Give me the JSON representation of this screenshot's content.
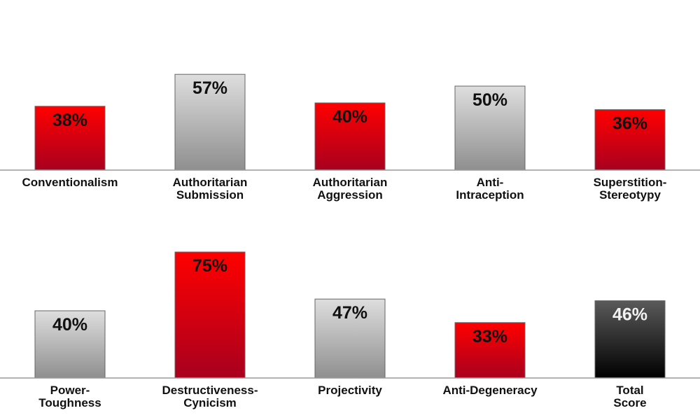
{
  "chart_data": [
    {
      "type": "bar",
      "categories": [
        "Conventionalism",
        "Authoritarian\nSubmission",
        "Authoritarian\nAggression",
        "Anti-\nIntraception",
        "Superstition-\nStereotypy"
      ],
      "values": [
        38,
        57,
        40,
        50,
        36
      ],
      "value_labels": [
        "38%",
        "57%",
        "40%",
        "50%",
        "36%"
      ],
      "bar_styles": [
        "red",
        "gray",
        "red",
        "gray",
        "red"
      ],
      "ylim": [
        0,
        100
      ],
      "grid": false,
      "legend": "none"
    },
    {
      "type": "bar",
      "categories": [
        "Power-\nToughness",
        "Destructiveness-\nCynicism",
        "Projectivity",
        "Anti-Degeneracy",
        "Total\nScore"
      ],
      "values": [
        40,
        75,
        47,
        33,
        46
      ],
      "value_labels": [
        "40%",
        "75%",
        "47%",
        "33%",
        "46%"
      ],
      "bar_styles": [
        "gray",
        "red",
        "gray",
        "red",
        "black"
      ],
      "ylim": [
        0,
        100
      ],
      "grid": false,
      "legend": "none"
    }
  ],
  "colors": {
    "red_top": "#ff0000",
    "red_bottom": "#a8001e",
    "gray_top": "#dedede",
    "gray_bottom": "#8f8f8f",
    "black_top": "#5a5a5a",
    "black_bottom": "#000000",
    "axis": "#9a9a9a",
    "bar_outline": "#666666",
    "value_text_dark": "#111111",
    "value_text_light": "#f2f2f2"
  }
}
